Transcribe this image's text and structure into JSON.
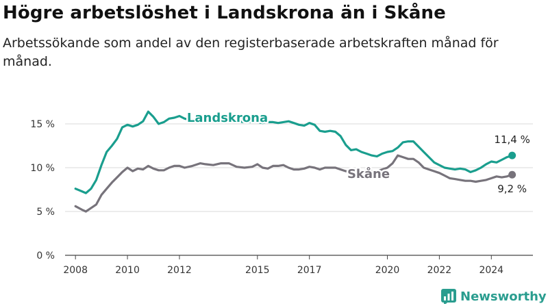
{
  "page": {
    "title": "Högre arbetslöshet i Landskrona än i Skåne",
    "subtitle": "Arbetssökande som andel av den registerbaserade arbetskraften månad för månad."
  },
  "brand": {
    "name": "Newsworthy",
    "color": "#2a9d8f"
  },
  "chart_data": {
    "type": "line",
    "title": "Högre arbetslöshet i Landskrona än i Skåne",
    "subtitle": "Arbetssökande som andel av den registerbaserade arbetskraften månad för månad.",
    "xlabel": "",
    "ylabel": "",
    "xlim": [
      2007.6,
      2025.6
    ],
    "ylim": [
      0,
      15
    ],
    "y_ticks": [
      0,
      5,
      10,
      15
    ],
    "y_tick_labels": [
      "0 %",
      "5 %",
      "10 %",
      "15 %"
    ],
    "x_ticks": [
      2008,
      2010,
      2012,
      2015,
      2017,
      2020,
      2022,
      2024
    ],
    "x_tick_labels": [
      "2008",
      "2010",
      "2012",
      "2015",
      "2017",
      "2020",
      "2022",
      "2024"
    ],
    "grid": "horizontal",
    "legend": "inline labels",
    "series": [
      {
        "name": "Landskrona",
        "color": "#1a9e8e",
        "end_label": "11,4 %",
        "x": [
          2008.0,
          2008.25,
          2008.4,
          2008.6,
          2008.8,
          2009.0,
          2009.2,
          2009.4,
          2009.6,
          2009.8,
          2010.0,
          2010.2,
          2010.4,
          2010.6,
          2010.8,
          2011.0,
          2011.2,
          2011.4,
          2011.6,
          2011.8,
          2012.0,
          2012.2,
          2012.5,
          2012.8,
          2013.0,
          2013.3,
          2013.6,
          2013.9,
          2014.2,
          2014.5,
          2014.8,
          2015.0,
          2015.2,
          2015.4,
          2015.6,
          2015.8,
          2016.0,
          2016.2,
          2016.4,
          2016.6,
          2016.8,
          2017.0,
          2017.2,
          2017.4,
          2017.6,
          2017.8,
          2018.0,
          2018.2,
          2018.4,
          2018.6,
          2018.8,
          2019.0,
          2019.2,
          2019.4,
          2019.6,
          2019.8,
          2020.0,
          2020.2,
          2020.4,
          2020.6,
          2020.8,
          2021.0,
          2021.2,
          2021.4,
          2021.6,
          2021.8,
          2022.0,
          2022.2,
          2022.4,
          2022.6,
          2022.8,
          2023.0,
          2023.2,
          2023.4,
          2023.6,
          2023.8,
          2024.0,
          2024.2,
          2024.4,
          2024.6,
          2024.8
        ],
        "y": [
          7.6,
          7.3,
          7.1,
          7.6,
          8.6,
          10.3,
          11.8,
          12.5,
          13.3,
          14.6,
          14.9,
          14.7,
          14.9,
          15.3,
          16.4,
          15.8,
          15.0,
          15.2,
          15.6,
          15.7,
          15.9,
          15.6,
          15.4,
          15.5,
          15.6,
          15.3,
          15.4,
          15.4,
          15.3,
          15.2,
          15.2,
          15.2,
          15.1,
          15.2,
          15.2,
          15.1,
          15.2,
          15.3,
          15.1,
          14.9,
          14.8,
          15.1,
          14.9,
          14.2,
          14.1,
          14.2,
          14.1,
          13.6,
          12.6,
          12.0,
          12.1,
          11.8,
          11.6,
          11.4,
          11.3,
          11.6,
          11.8,
          11.9,
          12.3,
          12.9,
          13.0,
          13.0,
          12.4,
          11.8,
          11.2,
          10.6,
          10.3,
          10.0,
          9.9,
          9.8,
          9.9,
          9.8,
          9.5,
          9.7,
          10.0,
          10.4,
          10.7,
          10.6,
          10.9,
          11.2,
          11.4
        ]
      },
      {
        "name": "Skåne",
        "color": "#77737b",
        "end_label": "9,2 %",
        "x": [
          2008.0,
          2008.25,
          2008.4,
          2008.6,
          2008.8,
          2009.0,
          2009.2,
          2009.4,
          2009.6,
          2009.8,
          2010.0,
          2010.2,
          2010.4,
          2010.6,
          2010.8,
          2011.0,
          2011.2,
          2011.4,
          2011.6,
          2011.8,
          2012.0,
          2012.2,
          2012.5,
          2012.8,
          2013.0,
          2013.3,
          2013.6,
          2013.9,
          2014.2,
          2014.5,
          2014.8,
          2015.0,
          2015.2,
          2015.4,
          2015.6,
          2015.8,
          2016.0,
          2016.2,
          2016.4,
          2016.6,
          2016.8,
          2017.0,
          2017.2,
          2017.4,
          2017.6,
          2017.8,
          2018.0,
          2018.2,
          2018.4,
          2018.6,
          2018.8,
          2019.0,
          2019.2,
          2019.4,
          2019.6,
          2019.8,
          2020.0,
          2020.2,
          2020.4,
          2020.6,
          2020.8,
          2021.0,
          2021.2,
          2021.4,
          2021.6,
          2021.8,
          2022.0,
          2022.2,
          2022.4,
          2022.6,
          2022.8,
          2023.0,
          2023.2,
          2023.4,
          2023.6,
          2023.8,
          2024.0,
          2024.2,
          2024.4,
          2024.6,
          2024.8
        ],
        "y": [
          5.6,
          5.2,
          5.0,
          5.4,
          5.8,
          6.9,
          7.6,
          8.3,
          8.9,
          9.5,
          10.0,
          9.6,
          9.9,
          9.8,
          10.2,
          9.9,
          9.7,
          9.7,
          10.0,
          10.2,
          10.2,
          10.0,
          10.2,
          10.5,
          10.4,
          10.3,
          10.5,
          10.5,
          10.1,
          10.0,
          10.1,
          10.4,
          10.0,
          9.9,
          10.2,
          10.2,
          10.3,
          10.0,
          9.8,
          9.8,
          9.9,
          10.1,
          10.0,
          9.8,
          10.0,
          10.0,
          10.0,
          9.8,
          9.6,
          9.5,
          9.6,
          9.6,
          9.7,
          9.6,
          9.6,
          9.8,
          10.0,
          10.5,
          11.4,
          11.2,
          11.0,
          11.0,
          10.6,
          10.0,
          9.8,
          9.6,
          9.4,
          9.1,
          8.8,
          8.7,
          8.6,
          8.5,
          8.5,
          8.4,
          8.5,
          8.6,
          8.8,
          9.0,
          8.9,
          9.0,
          9.2
        ]
      }
    ]
  }
}
